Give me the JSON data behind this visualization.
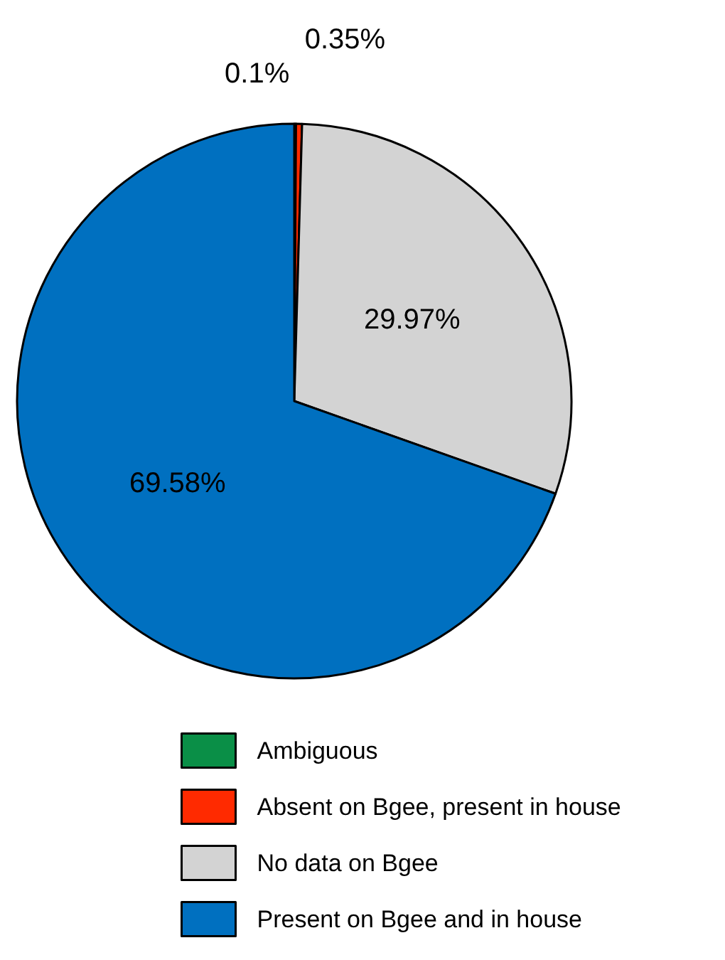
{
  "chart_data": {
    "type": "pie",
    "categories": [
      "Ambiguous",
      "Absent on Bgee, present in house",
      "No data on Bgee",
      "Present on Bgee and in house"
    ],
    "values": [
      0.1,
      0.35,
      29.97,
      69.58
    ],
    "colors": [
      "#0a8f47",
      "#ff2a00",
      "#d3d3d3",
      "#0070c0"
    ],
    "value_labels": [
      "0.1%",
      "0.35%",
      "29.97%",
      "69.58%"
    ],
    "legend": "bottom"
  }
}
